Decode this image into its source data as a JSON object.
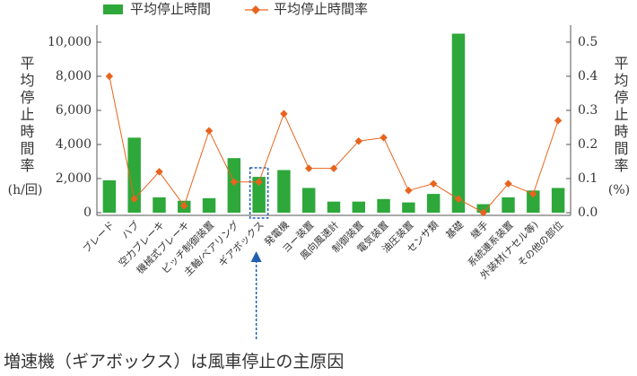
{
  "chart_data": {
    "type": "bar-line",
    "categories": [
      "ブレード",
      "ハブ",
      "空力ブレーキ",
      "機械式ブレーキ",
      "ピッチ制御装置",
      "主軸/ベアリング",
      "ギアボックス",
      "発電機",
      "ヨー装置",
      "風向風速計",
      "制御装置",
      "電気装置",
      "油圧装置",
      "センサ類",
      "基礎",
      "継手",
      "系統連系装置",
      "外装材(ナセル等)",
      "その他の部位"
    ],
    "series": [
      {
        "name": "平均停止時間",
        "type": "bar",
        "color": "#2ea83a",
        "values": [
          1900,
          4400,
          900,
          700,
          850,
          3200,
          2100,
          2500,
          1450,
          650,
          650,
          800,
          600,
          1100,
          10500,
          500,
          900,
          1300,
          1450
        ]
      },
      {
        "name": "平均停止時間率",
        "type": "line",
        "axis": "y2",
        "color": "#e8641e",
        "values": [
          0.4,
          0.04,
          0.12,
          0.02,
          0.24,
          0.09,
          0.09,
          0.29,
          0.13,
          0.13,
          0.21,
          0.22,
          0.065,
          0.085,
          0.04,
          0.0,
          0.085,
          0.055,
          0.27
        ]
      }
    ],
    "ylabel": "平均停止時間率",
    "ylabel_unit": "(h/回)",
    "y2label": "平均停止時間率",
    "y2label_unit": "(%)",
    "ylim": [
      0,
      11000
    ],
    "yticks": [
      0,
      {
        "value": 2000,
        "label": "2,000"
      },
      {
        "value": 4000,
        "label": "4,000"
      },
      {
        "value": 6000,
        "label": "6,000"
      },
      {
        "value": 8000,
        "label": "8,000"
      },
      {
        "value": 10000,
        "label": "10,000"
      }
    ],
    "y2lim": [
      0,
      0.55
    ],
    "y2ticks": [
      {
        "value": 0,
        "label": "0.0"
      },
      0.1,
      0.2,
      0.3,
      0.4,
      0.5
    ],
    "annotation": "増速機（ギアボックス）は風車停止の主原因",
    "highlight_index": 6,
    "legend": "top"
  }
}
